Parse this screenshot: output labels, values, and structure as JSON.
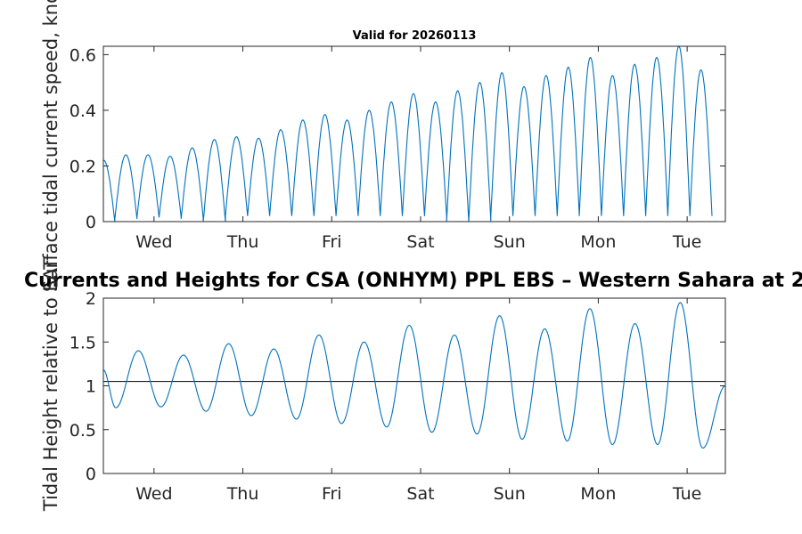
{
  "chart_data": [
    {
      "type": "line",
      "title": "Valid for 20260113",
      "ylabel": "Surface tidal current speed, knots",
      "xlabel": "",
      "x_tick_labels": [
        "Wed",
        "Thu",
        "Fri",
        "Sat",
        "Sun",
        "Mon",
        "Tue"
      ],
      "x_days_start": -0.57,
      "x_days_end": 6.43,
      "ylim": [
        0,
        0.63
      ],
      "y_ticks": [
        0,
        0.2,
        0.4,
        0.6
      ],
      "y_tick_labels": [
        "0",
        "0.2",
        "0.4",
        "0.6"
      ],
      "series": [
        {
          "name": "current speed",
          "color": "#0072BD",
          "peaks": [
            0.22,
            0.24,
            0.24,
            0.235,
            0.265,
            0.295,
            0.305,
            0.3,
            0.33,
            0.365,
            0.385,
            0.365,
            0.4,
            0.43,
            0.46,
            0.43,
            0.47,
            0.5,
            0.535,
            0.485,
            0.525,
            0.555,
            0.59,
            0.525,
            0.565,
            0.59,
            0.63,
            0.545
          ],
          "troughs": [
            0.0,
            0.01,
            0.015,
            0.015,
            0.01,
            0.0,
            0.02,
            0.02,
            0.02,
            0.02,
            0.02,
            0.02,
            0.02,
            0.02,
            0.02,
            0.02,
            0.0,
            0.0,
            0.02,
            0.02,
            0.02,
            0.02,
            0.02,
            0.02,
            0.02,
            0.02,
            0.02,
            0.02
          ]
        }
      ]
    },
    {
      "type": "line",
      "title": "Currents and Heights for CSA (ONHYM) PPL EBS  – Western Sahara at 2",
      "ylabel": "Tidal Height relative to LAT",
      "xlabel": "",
      "x_tick_labels": [
        "Wed",
        "Thu",
        "Fri",
        "Sat",
        "Sun",
        "Mon",
        "Tue"
      ],
      "x_days_start": -0.57,
      "x_days_end": 6.43,
      "ylim": [
        0,
        2
      ],
      "y_ticks": [
        0,
        0.5,
        1,
        1.5,
        2
      ],
      "y_tick_labels": [
        "0",
        "0.5",
        "1",
        "1.5",
        "2"
      ],
      "reference_line": 1.05,
      "series": [
        {
          "name": "tidal height",
          "color": "#0072BD",
          "start_value": 1.18,
          "lows": [
            0.75,
            0.76,
            0.71,
            0.66,
            0.62,
            0.57,
            0.53,
            0.47,
            0.45,
            0.39,
            0.37,
            0.33,
            0.33,
            0.29
          ],
          "highs": [
            1.4,
            1.35,
            1.48,
            1.42,
            1.58,
            1.5,
            1.69,
            1.58,
            1.8,
            1.65,
            1.88,
            1.71,
            1.95
          ],
          "end_value": 1.0
        }
      ]
    }
  ]
}
